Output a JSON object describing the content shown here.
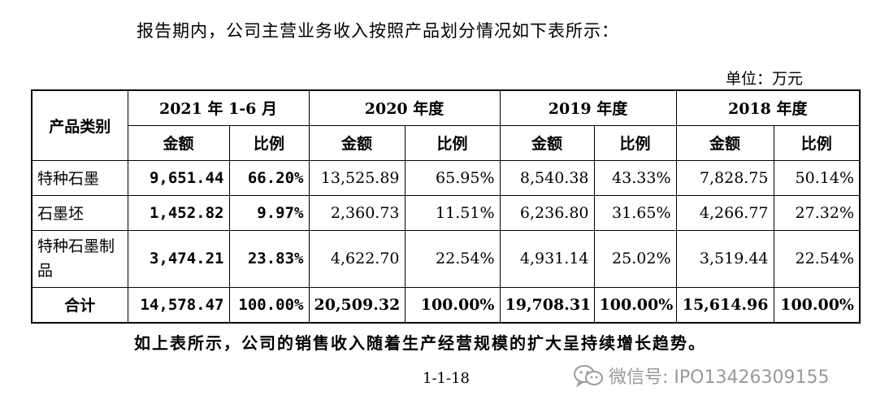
{
  "intro_text": "报告期内，公司主营业务收入按照产品划分情况如下表所示：",
  "unit_text": "单位：万元",
  "table": {
    "category_header": "产品类别",
    "periods": [
      "2021 年 1-6 月",
      "2020 年度",
      "2019 年度",
      "2018 年度"
    ],
    "amount_label": "金额",
    "ratio_label": "比例",
    "rows": [
      {
        "category": "特种石墨",
        "cells": [
          "9,651.44",
          "66.20%",
          "13,525.89",
          "65.95%",
          "8,540.38",
          "43.33%",
          "7,828.75",
          "50.14%"
        ]
      },
      {
        "category": "石墨坯",
        "cells": [
          "1,452.82",
          "9.97%",
          "2,360.73",
          "11.51%",
          "6,236.80",
          "31.65%",
          "4,266.77",
          "27.32%"
        ]
      },
      {
        "category": "特种石墨制品",
        "cells": [
          "3,474.21",
          "23.83%",
          "4,622.70",
          "22.54%",
          "4,931.14",
          "25.02%",
          "3,519.44",
          "22.54%"
        ]
      }
    ],
    "total": {
      "category": "合计",
      "cells": [
        "14,578.47",
        "100.00%",
        "20,509.32",
        "100.00%",
        "19,708.31",
        "100.00%",
        "15,614.96",
        "100.00%"
      ]
    }
  },
  "conclusion_text": "如上表所示，公司的销售收入随着生产经营规模的扩大呈持续增长趋势。",
  "page_number": "1-1-18",
  "watermark": {
    "icon": "wechat-icon",
    "text": "微信号: IPO13426309155"
  }
}
